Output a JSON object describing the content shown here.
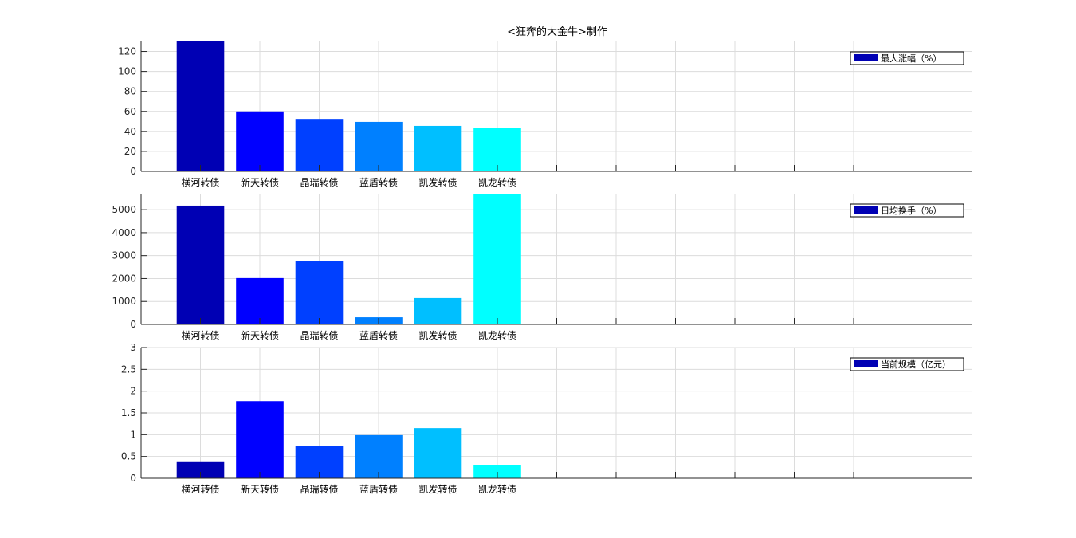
{
  "title": "<狂奔的大金牛>制作",
  "chart_data": [
    {
      "type": "bar",
      "categories": [
        "横河转债",
        "新天转债",
        "晶瑞转债",
        "蓝盾转债",
        "凯发转债",
        "凯龙转债"
      ],
      "values": [
        131,
        60,
        52.5,
        49.5,
        45.5,
        43.5
      ],
      "legend": "最大涨幅（%）",
      "legend_position": "top-right",
      "ylim": [
        0,
        130
      ],
      "yticks": [
        0,
        20,
        40,
        60,
        80,
        100,
        120
      ],
      "xlim": [
        0,
        14
      ],
      "xticks": [
        1,
        2,
        3,
        4,
        5,
        6,
        7,
        8,
        9,
        10,
        11,
        12,
        13
      ],
      "grid": true
    },
    {
      "type": "bar",
      "categories": [
        "横河转债",
        "新天转债",
        "晶瑞转债",
        "蓝盾转债",
        "凯发转债",
        "凯龙转债"
      ],
      "values": [
        5180,
        2020,
        2750,
        310,
        1150,
        5800
      ],
      "legend": "日均换手（%）",
      "legend_position": "top-right",
      "ylim": [
        0,
        5700
      ],
      "yticks": [
        0,
        1000,
        2000,
        3000,
        4000,
        5000
      ],
      "xlim": [
        0,
        14
      ],
      "xticks": [
        1,
        2,
        3,
        4,
        5,
        6,
        7,
        8,
        9,
        10,
        11,
        12,
        13
      ],
      "grid": true
    },
    {
      "type": "bar",
      "categories": [
        "横河转债",
        "新天转债",
        "晶瑞转债",
        "蓝盾转债",
        "凯发转债",
        "凯龙转债"
      ],
      "values": [
        0.37,
        1.77,
        0.74,
        0.99,
        1.15,
        0.31
      ],
      "legend": "当前规模（亿元）",
      "legend_position": "top-right",
      "ylim": [
        0,
        3
      ],
      "yticks": [
        0,
        0.5,
        1,
        1.5,
        2,
        2.5,
        3
      ],
      "xlim": [
        0,
        14
      ],
      "xticks": [
        1,
        2,
        3,
        4,
        5,
        6,
        7,
        8,
        9,
        10,
        11,
        12,
        13
      ],
      "grid": true
    }
  ],
  "colors": {
    "bars": [
      "#0000b4",
      "#0000ff",
      "#0040ff",
      "#0080ff",
      "#00bfff",
      "#00ffff"
    ],
    "legend_swatch": "#0000b4",
    "grid": "#dcdcdc",
    "axis": "#262626"
  }
}
